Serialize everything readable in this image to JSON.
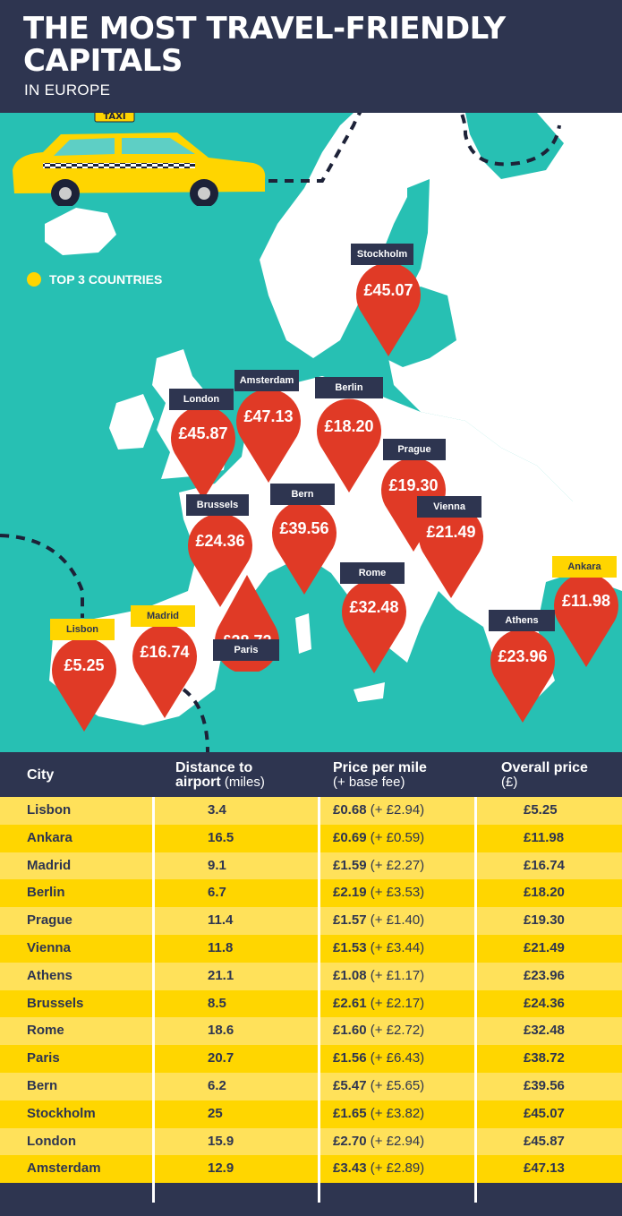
{
  "header": {
    "title_line1": "THE MOST TRAVEL-FRIENDLY",
    "title_line2": "CAPITALS",
    "subtitle": "IN EUROPE",
    "taxi_sign": "TAXI"
  },
  "legend": {
    "label": "TOP 3 COUNTRIES",
    "dot_color": "#ffd500"
  },
  "colors": {
    "sea": "#27c0b3",
    "land": "#ffffff",
    "navy": "#2e3550",
    "pin": "#e03a26",
    "yellow": "#ffd500"
  },
  "pins": [
    {
      "city": "Stockholm",
      "price": "£45.07",
      "top3": false
    },
    {
      "city": "London",
      "price": "£45.87",
      "top3": false
    },
    {
      "city": "Amsterdam",
      "price": "£47.13",
      "top3": false
    },
    {
      "city": "Berlin",
      "price": "£18.20",
      "top3": false
    },
    {
      "city": "Prague",
      "price": "£19.30",
      "top3": false
    },
    {
      "city": "Brussels",
      "price": "£24.36",
      "top3": false
    },
    {
      "city": "Bern",
      "price": "£39.56",
      "top3": false
    },
    {
      "city": "Vienna",
      "price": "£21.49",
      "top3": false
    },
    {
      "city": "Ankara",
      "price": "£11.98",
      "top3": true
    },
    {
      "city": "Rome",
      "price": "£32.48",
      "top3": false
    },
    {
      "city": "Madrid",
      "price": "£16.74",
      "top3": true
    },
    {
      "city": "Paris",
      "price": "£38.72",
      "top3": false
    },
    {
      "city": "Lisbon",
      "price": "£5.25",
      "top3": true
    },
    {
      "city": "Athens",
      "price": "£23.96",
      "top3": false
    }
  ],
  "table": {
    "headers": {
      "city": "City",
      "distance_bold": "Distance to",
      "distance_bold2": "airport",
      "distance_rest": " (miles)",
      "ppm_bold": "Price per mile",
      "ppm_rest": "(+ base fee)",
      "overall_bold": "Overall price",
      "overall_rest": "(£)"
    },
    "rows": [
      {
        "city": "Lisbon",
        "distance": "3.4",
        "ppm": "£0.68",
        "fee": " (+ £2.94)",
        "overall": "£5.25"
      },
      {
        "city": "Ankara",
        "distance": "16.5",
        "ppm": "£0.69",
        "fee": " (+ £0.59)",
        "overall": "£11.98"
      },
      {
        "city": "Madrid",
        "distance": "9.1",
        "ppm": "£1.59",
        "fee": " (+ £2.27)",
        "overall": "£16.74"
      },
      {
        "city": "Berlin",
        "distance": "6.7",
        "ppm": "£2.19",
        "fee": " (+ £3.53)",
        "overall": "£18.20"
      },
      {
        "city": "Prague",
        "distance": "11.4",
        "ppm": "£1.57",
        "fee": " (+ £1.40)",
        "overall": "£19.30"
      },
      {
        "city": "Vienna",
        "distance": "11.8",
        "ppm": "£1.53",
        "fee": " (+ £3.44)",
        "overall": "£21.49"
      },
      {
        "city": "Athens",
        "distance": "21.1",
        "ppm": "£1.08",
        "fee": " (+ £1.17)",
        "overall": "£23.96"
      },
      {
        "city": "Brussels",
        "distance": "8.5",
        "ppm": "£2.61",
        "fee": " (+ £2.17)",
        "overall": "£24.36"
      },
      {
        "city": "Rome",
        "distance": "18.6",
        "ppm": "£1.60",
        "fee": " (+ £2.72)",
        "overall": "£32.48"
      },
      {
        "city": "Paris",
        "distance": "20.7",
        "ppm": "£1.56",
        "fee": " (+ £6.43)",
        "overall": "£38.72"
      },
      {
        "city": "Bern",
        "distance": "6.2",
        "ppm": "£5.47",
        "fee": " (+ £5.65)",
        "overall": "£39.56"
      },
      {
        "city": "Stockholm",
        "distance": "25",
        "ppm": "£1.65",
        "fee": " (+ £3.82)",
        "overall": "£45.07"
      },
      {
        "city": "London",
        "distance": "15.9",
        "ppm": "£2.70",
        "fee": " (+ £2.94)",
        "overall": "£45.87"
      },
      {
        "city": "Amsterdam",
        "distance": "12.9",
        "ppm": "£3.43",
        "fee": " (+ £2.89)",
        "overall": "£47.13"
      }
    ]
  }
}
